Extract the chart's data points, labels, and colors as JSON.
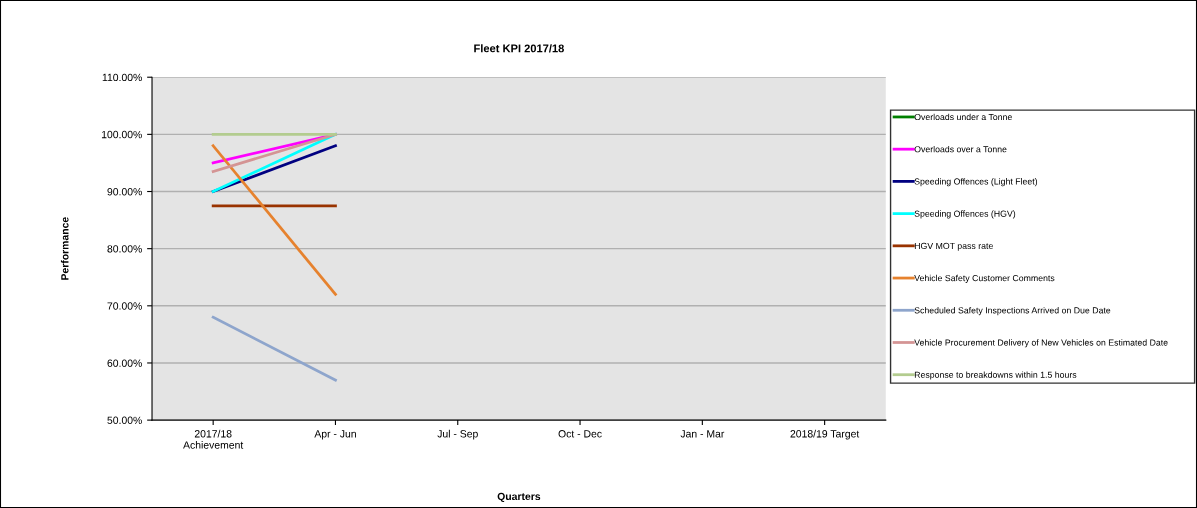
{
  "chart_data": {
    "type": "line",
    "title": "Fleet KPI 2017/18",
    "xlabel": "Quarters",
    "ylabel": "Performance",
    "categories": [
      "2017/18\nAchievement",
      "Apr - Jun",
      "Jul - Sep",
      "Oct - Dec",
      "Jan - Mar",
      "2018/19 Target"
    ],
    "series": [
      {
        "name": "Overloads under a Tonne",
        "color": "#008000",
        "values": [
          null,
          null,
          null,
          null,
          null,
          null
        ]
      },
      {
        "name": "Overloads over a Tonne",
        "color": "#ff00ff",
        "values": [
          95,
          100,
          null,
          null,
          null,
          null
        ]
      },
      {
        "name": "Speeding Offences (Light Fleet)",
        "color": "#000080",
        "values": [
          90,
          98,
          null,
          null,
          null,
          null
        ]
      },
      {
        "name": "Speeding Offences (HGV)",
        "color": "#00ffff",
        "values": [
          90,
          100,
          null,
          null,
          null,
          null
        ]
      },
      {
        "name": "HGV MOT pass rate",
        "color": "#993300",
        "values": [
          87.5,
          87.5,
          null,
          null,
          null,
          null
        ]
      },
      {
        "name": "Vehicle Safety Customer Comments",
        "color": "#e6822e",
        "values": [
          98,
          72,
          null,
          null,
          null,
          null
        ]
      },
      {
        "name": "Scheduled Safety Inspections Arrived on Due Date",
        "color": "#8ea5cc",
        "values": [
          68,
          57,
          null,
          null,
          null,
          null
        ]
      },
      {
        "name": "Vehicle Procurement Delivery of New Vehicles on Estimated Date",
        "color": "#d49494",
        "values": [
          93.5,
          100,
          null,
          null,
          null,
          null
        ]
      },
      {
        "name": "Response to breakdowns within 1.5 hours",
        "color": "#b3cc8f",
        "values": [
          100,
          100,
          null,
          null,
          null,
          null
        ]
      }
    ],
    "ylim": [
      50,
      110
    ],
    "yticks": [
      {
        "value": 50,
        "label": "50.00%"
      },
      {
        "value": 60,
        "label": "60.00%"
      },
      {
        "value": 70,
        "label": "70.00%"
      },
      {
        "value": 80,
        "label": "80.00%"
      },
      {
        "value": 90,
        "label": "90.00%"
      },
      {
        "value": 100,
        "label": "100.00%"
      },
      {
        "value": 110,
        "label": "110.00%"
      }
    ],
    "grid": "y",
    "legend": "right",
    "marker": "none",
    "line_style": "solid"
  }
}
